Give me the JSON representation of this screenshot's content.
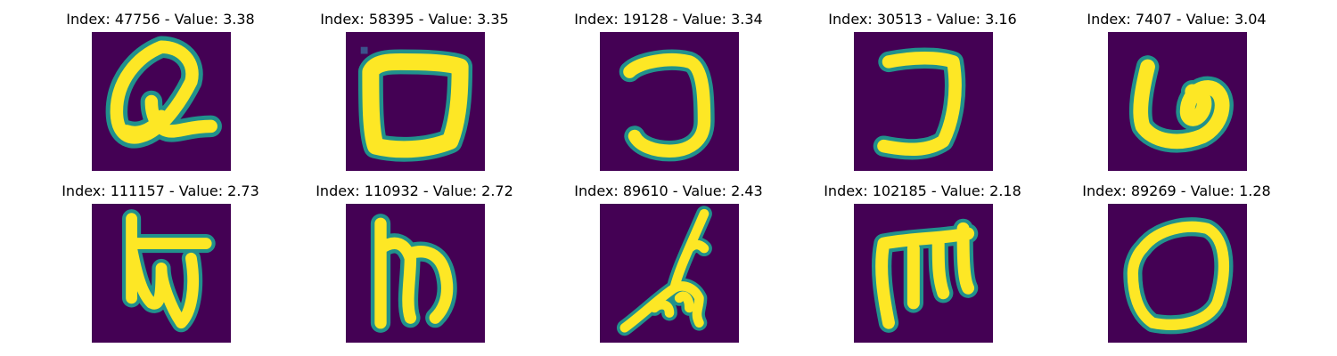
{
  "figure": {
    "background": "#ffffff",
    "colors": {
      "image_background": "#440154",
      "stroke_core": "#fde725",
      "stroke_edge": "#21918c",
      "stroke_mid": "#5ec962"
    },
    "panels": [
      {
        "title": "Index: 47756 - Value: 3.38",
        "glyph": "handwritten-q"
      },
      {
        "title": "Index: 58395 - Value: 3.35",
        "glyph": "handwritten-o"
      },
      {
        "title": "Index: 19128 - Value: 3.34",
        "glyph": "handwritten-reversed-c"
      },
      {
        "title": "Index: 30513 - Value: 3.16",
        "glyph": "handwritten-j"
      },
      {
        "title": "Index: 7407 - Value: 3.04",
        "glyph": "handwritten-loop"
      },
      {
        "title": "Index: 111157 - Value: 2.73",
        "glyph": "handwritten-script-w"
      },
      {
        "title": "Index: 110932 - Value: 2.72",
        "glyph": "handwritten-m"
      },
      {
        "title": "Index: 89610 - Value: 2.43",
        "glyph": "handwritten-scribble"
      },
      {
        "title": "Index: 102185 - Value: 2.18",
        "glyph": "handwritten-script-m"
      },
      {
        "title": "Index: 89269 - Value: 1.28",
        "glyph": "handwritten-o"
      }
    ]
  }
}
